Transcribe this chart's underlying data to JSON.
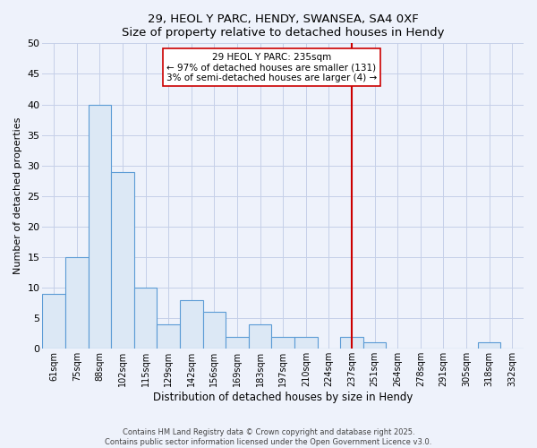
{
  "title": "29, HEOL Y PARC, HENDY, SWANSEA, SA4 0XF",
  "subtitle": "Size of property relative to detached houses in Hendy",
  "xlabel": "Distribution of detached houses by size in Hendy",
  "ylabel": "Number of detached properties",
  "bin_labels": [
    "61sqm",
    "75sqm",
    "88sqm",
    "102sqm",
    "115sqm",
    "129sqm",
    "142sqm",
    "156sqm",
    "169sqm",
    "183sqm",
    "197sqm",
    "210sqm",
    "224sqm",
    "237sqm",
    "251sqm",
    "264sqm",
    "278sqm",
    "291sqm",
    "305sqm",
    "318sqm",
    "332sqm"
  ],
  "bar_heights": [
    9,
    15,
    40,
    29,
    10,
    4,
    8,
    6,
    2,
    4,
    2,
    2,
    0,
    2,
    1,
    0,
    0,
    0,
    0,
    1,
    0
  ],
  "bar_color": "#dce8f5",
  "bar_edge_color": "#5b9bd5",
  "vline_x_index": 13,
  "vline_color": "#cc0000",
  "ylim": [
    0,
    50
  ],
  "yticks": [
    0,
    5,
    10,
    15,
    20,
    25,
    30,
    35,
    40,
    45,
    50
  ],
  "annotation_title": "29 HEOL Y PARC: 235sqm",
  "annotation_line1": "← 97% of detached houses are smaller (131)",
  "annotation_line2": "3% of semi-detached houses are larger (4) →",
  "footer_line1": "Contains HM Land Registry data © Crown copyright and database right 2025.",
  "footer_line2": "Contains public sector information licensed under the Open Government Licence v3.0.",
  "background_color": "#eef2fb",
  "grid_color": "#c5cfe8"
}
